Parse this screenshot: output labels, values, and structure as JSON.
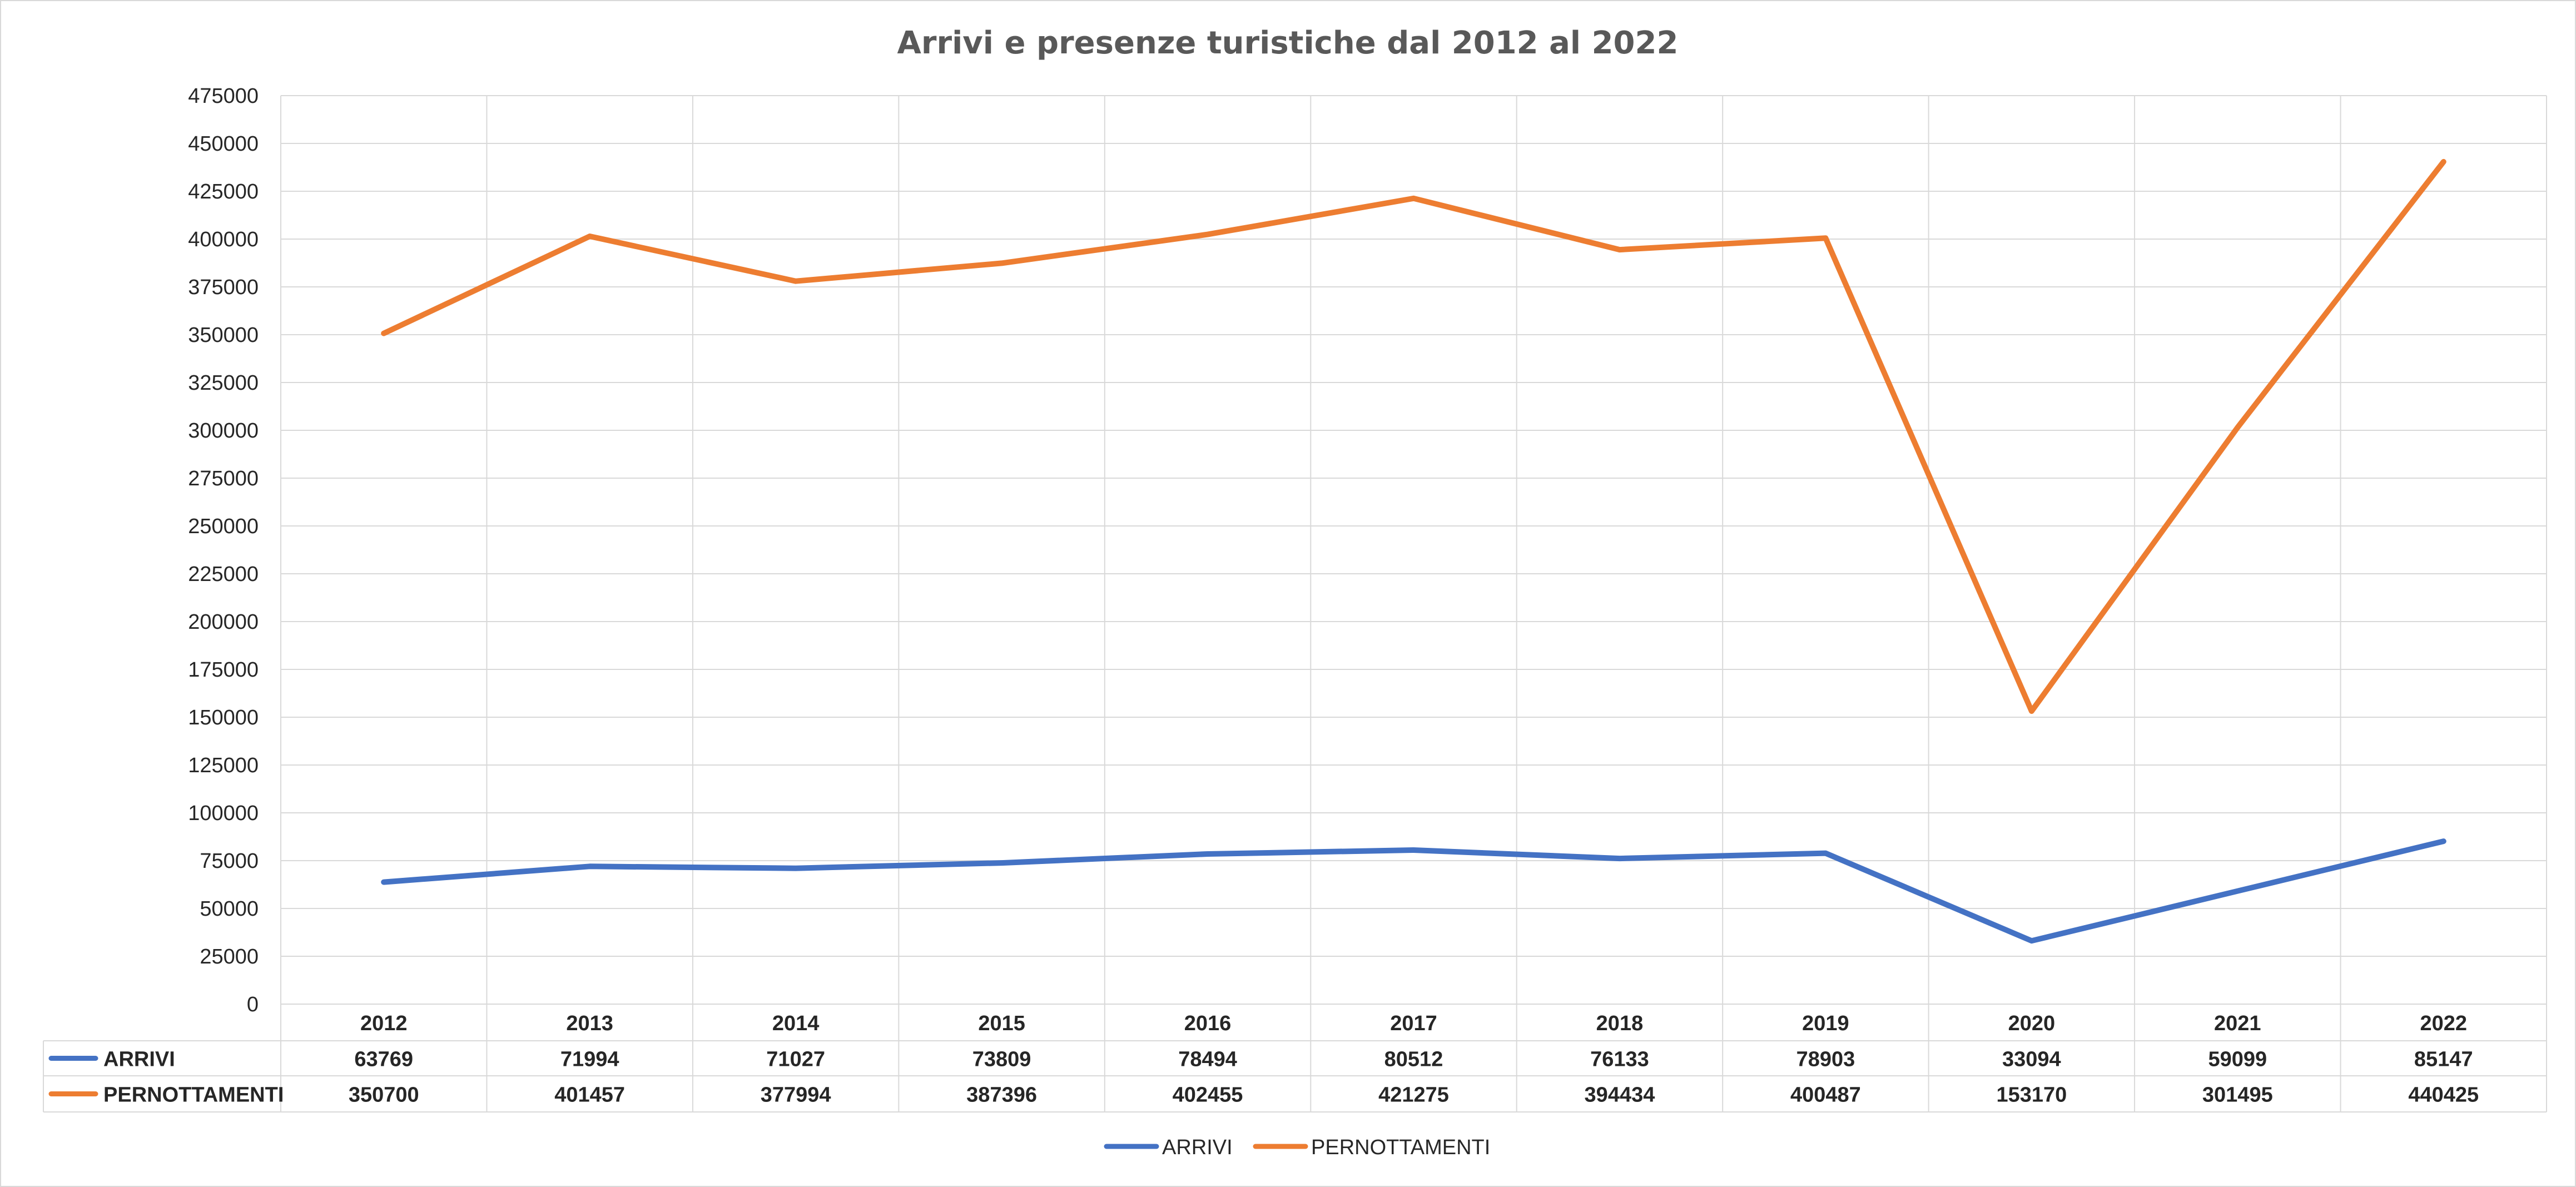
{
  "chart_data": {
    "type": "line",
    "title": "Arrivi e presenze turistiche dal 2012 al 2022",
    "categories": [
      "2012",
      "2013",
      "2014",
      "2015",
      "2016",
      "2017",
      "2018",
      "2019",
      "2020",
      "2021",
      "2022"
    ],
    "y_ticks": [
      "0",
      "25000",
      "50000",
      "75000",
      "100000",
      "125000",
      "150000",
      "175000",
      "200000",
      "225000",
      "250000",
      "275000",
      "300000",
      "325000",
      "350000",
      "375000",
      "400000",
      "425000",
      "450000",
      "475000"
    ],
    "ylim": [
      0,
      475000
    ],
    "grid": true,
    "legend_position": "bottom",
    "data_table": true,
    "series": [
      {
        "name": "ARRIVI",
        "color": "#4472C4",
        "values": [
          63769,
          71994,
          71027,
          73809,
          78494,
          80512,
          76133,
          78903,
          33094,
          59099,
          85147
        ]
      },
      {
        "name": "PERNOTTAMENTI",
        "color": "#ED7D31",
        "values": [
          350700,
          401457,
          377994,
          387396,
          402455,
          421275,
          394434,
          400487,
          153170,
          301495,
          440425
        ]
      }
    ]
  }
}
